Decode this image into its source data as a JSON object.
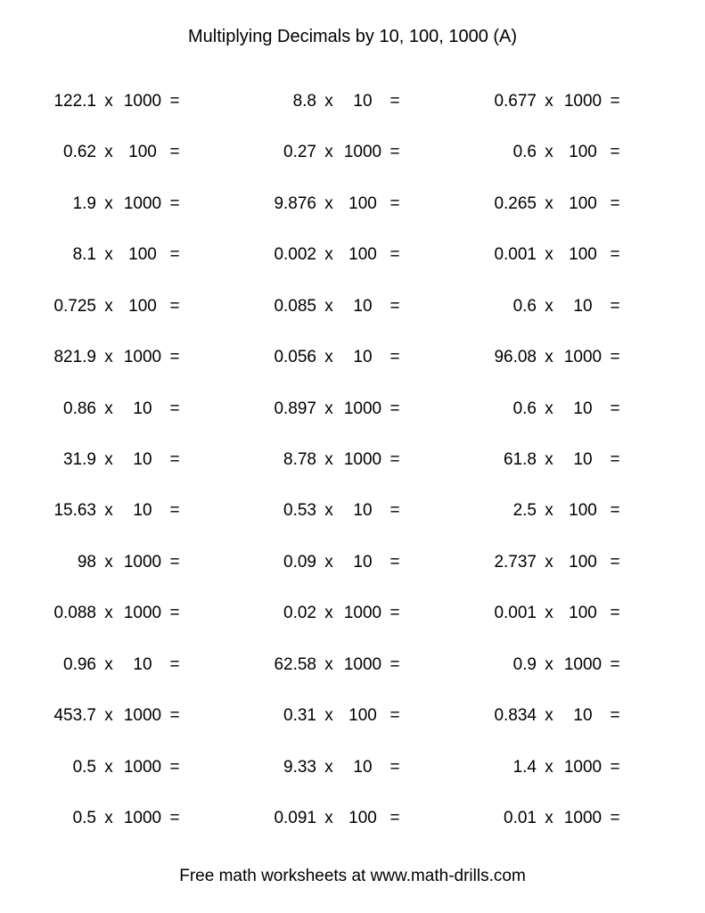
{
  "title": "Multiplying Decimals by 10, 100, 1000 (A)",
  "footer": "Free math worksheets at www.math-drills.com",
  "times_symbol": "x",
  "equals_symbol": "=",
  "problems": [
    {
      "a": "122.1",
      "b": "1000"
    },
    {
      "a": "8.8",
      "b": "10"
    },
    {
      "a": "0.677",
      "b": "1000"
    },
    {
      "a": "0.62",
      "b": "100"
    },
    {
      "a": "0.27",
      "b": "1000"
    },
    {
      "a": "0.6",
      "b": "100"
    },
    {
      "a": "1.9",
      "b": "1000"
    },
    {
      "a": "9.876",
      "b": "100"
    },
    {
      "a": "0.265",
      "b": "100"
    },
    {
      "a": "8.1",
      "b": "100"
    },
    {
      "a": "0.002",
      "b": "100"
    },
    {
      "a": "0.001",
      "b": "100"
    },
    {
      "a": "0.725",
      "b": "100"
    },
    {
      "a": "0.085",
      "b": "10"
    },
    {
      "a": "0.6",
      "b": "10"
    },
    {
      "a": "821.9",
      "b": "1000"
    },
    {
      "a": "0.056",
      "b": "10"
    },
    {
      "a": "96.08",
      "b": "1000"
    },
    {
      "a": "0.86",
      "b": "10"
    },
    {
      "a": "0.897",
      "b": "1000"
    },
    {
      "a": "0.6",
      "b": "10"
    },
    {
      "a": "31.9",
      "b": "10"
    },
    {
      "a": "8.78",
      "b": "1000"
    },
    {
      "a": "61.8",
      "b": "10"
    },
    {
      "a": "15.63",
      "b": "10"
    },
    {
      "a": "0.53",
      "b": "10"
    },
    {
      "a": "2.5",
      "b": "100"
    },
    {
      "a": "98",
      "b": "1000"
    },
    {
      "a": "0.09",
      "b": "10"
    },
    {
      "a": "2.737",
      "b": "100"
    },
    {
      "a": "0.088",
      "b": "1000"
    },
    {
      "a": "0.02",
      "b": "1000"
    },
    {
      "a": "0.001",
      "b": "100"
    },
    {
      "a": "0.96",
      "b": "10"
    },
    {
      "a": "62.58",
      "b": "1000"
    },
    {
      "a": "0.9",
      "b": "1000"
    },
    {
      "a": "453.7",
      "b": "1000"
    },
    {
      "a": "0.31",
      "b": "100"
    },
    {
      "a": "0.834",
      "b": "10"
    },
    {
      "a": "0.5",
      "b": "1000"
    },
    {
      "a": "9.33",
      "b": "10"
    },
    {
      "a": "1.4",
      "b": "1000"
    },
    {
      "a": "0.5",
      "b": "1000"
    },
    {
      "a": "0.091",
      "b": "100"
    },
    {
      "a": "0.01",
      "b": "1000"
    }
  ]
}
